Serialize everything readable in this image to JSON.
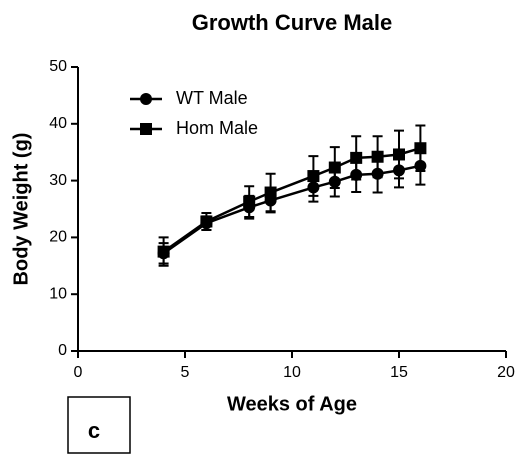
{
  "chart_data": {
    "type": "line",
    "title": "Growth Curve Male",
    "xlabel": "Weeks of Age",
    "ylabel": "Body Weight (g)",
    "panel_label": "c",
    "x": [
      4,
      6,
      8,
      9,
      11,
      12,
      13,
      14,
      15,
      16
    ],
    "series": [
      {
        "name": "WT Male",
        "color": "#000000",
        "marker": "circle",
        "values": [
          17.2,
          22.5,
          25.3,
          26.5,
          28.8,
          29.8,
          31.0,
          31.2,
          31.8,
          32.6
        ],
        "errors": [
          1.8,
          1.2,
          2.0,
          2.1,
          2.5,
          2.6,
          3.0,
          3.3,
          3.0,
          3.3
        ]
      },
      {
        "name": "Hom Male",
        "color": "#000000",
        "marker": "square",
        "values": [
          17.5,
          22.8,
          26.3,
          27.9,
          30.8,
          32.3,
          34.0,
          34.2,
          34.6,
          35.7
        ],
        "errors": [
          2.5,
          1.5,
          2.7,
          3.3,
          3.5,
          3.6,
          3.8,
          3.6,
          4.2,
          4.0
        ]
      }
    ],
    "xlim": [
      0,
      20
    ],
    "xticks": [
      0,
      5,
      10,
      15,
      20
    ],
    "ylim": [
      0,
      50
    ],
    "yticks": [
      0,
      10,
      20,
      30,
      40,
      50
    ],
    "legend": "upper left"
  }
}
